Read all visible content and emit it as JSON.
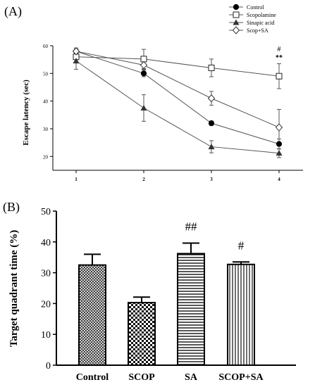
{
  "panel_labels": [
    "(A)",
    "(B)"
  ],
  "chart_data": [
    {
      "type": "line",
      "panel": "(A)",
      "title": "",
      "xlabel": "",
      "ylabel": "Escape latency (sec)",
      "x": [
        1,
        2,
        3,
        4
      ],
      "x_tick_labels": [
        "1",
        "2",
        "3",
        "4"
      ],
      "ylim": [
        15,
        60
      ],
      "y_ticks": [
        20,
        30,
        40,
        50,
        60
      ],
      "grid": false,
      "legend_position": "top-right",
      "series": [
        {
          "name": "Control",
          "marker": "circle-filled",
          "values": [
            58,
            50,
            32,
            24.5
          ],
          "errors": [
            0.8,
            1.2,
            0.8,
            1.8
          ]
        },
        {
          "name": "Scopolamine",
          "marker": "square-open",
          "values": [
            56,
            55.2,
            52,
            49
          ],
          "errors": [
            1.8,
            3.5,
            3.2,
            4.5
          ]
        },
        {
          "name": "Sinapic acid",
          "marker": "triangle-filled",
          "values": [
            54.5,
            37.5,
            23.5,
            21.2
          ],
          "errors": [
            3.0,
            4.8,
            2.2,
            1.6
          ]
        },
        {
          "name": "Scop+SA",
          "marker": "diamond-open",
          "values": [
            58,
            53,
            41,
            30.5
          ],
          "errors": [
            1.2,
            1.5,
            2.5,
            6.5
          ]
        }
      ],
      "annotations": [
        {
          "x": 4,
          "text": "#"
        },
        {
          "x": 4,
          "text": "**"
        }
      ]
    },
    {
      "type": "bar",
      "panel": "(B)",
      "title": "",
      "xlabel": "",
      "ylabel": "Target quadrant time (%)",
      "categories": [
        "Control",
        "SCOP",
        "SA",
        "SCOP+SA"
      ],
      "values": [
        32.5,
        20.3,
        36.2,
        32.7
      ],
      "errors": [
        3.5,
        1.8,
        3.4,
        0.8
      ],
      "patterns": [
        "crosshatch",
        "checker",
        "horizontal",
        "vertical"
      ],
      "ylim": [
        0,
        50
      ],
      "y_ticks": [
        0,
        10,
        20,
        30,
        40,
        50
      ],
      "grid": false,
      "annotations": [
        {
          "category": "SA",
          "text": "##"
        },
        {
          "category": "SCOP+SA",
          "text": "#"
        }
      ]
    }
  ]
}
